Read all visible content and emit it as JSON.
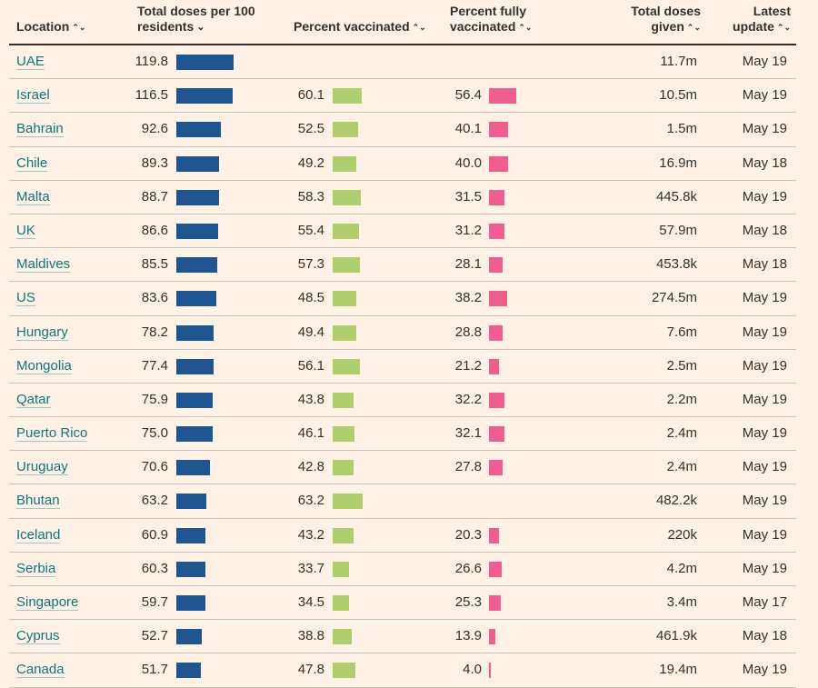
{
  "headers": {
    "location": "Location",
    "doses_line1": "Total doses per 100",
    "doses_line2": "residents",
    "pct_vacc": "Percent vaccinated",
    "pct_full_line1": "Percent fully",
    "pct_full_line2": "vaccinated",
    "given_line1": "Total doses",
    "given_line2": "given",
    "update_line1": "Latest",
    "update_line2": "update"
  },
  "icons": {
    "sort": "⌃⌄",
    "sort_active": "⌄"
  },
  "colors": {
    "doses_bar": "#1f5590",
    "vaccinated_bar": "#afcf6e",
    "fully_bar": "#ee5e8f",
    "link": "#0d7680",
    "background": "#fff1e5"
  },
  "rows": [
    {
      "location": "UAE",
      "doses": "119.8",
      "vaccinated": "",
      "fully": "",
      "given": "11.7m",
      "update": "May 19"
    },
    {
      "location": "Israel",
      "doses": "116.5",
      "vaccinated": "60.1",
      "fully": "56.4",
      "given": "10.5m",
      "update": "May 19"
    },
    {
      "location": "Bahrain",
      "doses": "92.6",
      "vaccinated": "52.5",
      "fully": "40.1",
      "given": "1.5m",
      "update": "May 19"
    },
    {
      "location": "Chile",
      "doses": "89.3",
      "vaccinated": "49.2",
      "fully": "40.0",
      "given": "16.9m",
      "update": "May 18"
    },
    {
      "location": "Malta",
      "doses": "88.7",
      "vaccinated": "58.3",
      "fully": "31.5",
      "given": "445.8k",
      "update": "May 19"
    },
    {
      "location": "UK",
      "doses": "86.6",
      "vaccinated": "55.4",
      "fully": "31.2",
      "given": "57.9m",
      "update": "May 18"
    },
    {
      "location": "Maldives",
      "doses": "85.5",
      "vaccinated": "57.3",
      "fully": "28.1",
      "given": "453.8k",
      "update": "May 18"
    },
    {
      "location": "US",
      "doses": "83.6",
      "vaccinated": "48.5",
      "fully": "38.2",
      "given": "274.5m",
      "update": "May 19"
    },
    {
      "location": "Hungary",
      "doses": "78.2",
      "vaccinated": "49.4",
      "fully": "28.8",
      "given": "7.6m",
      "update": "May 19"
    },
    {
      "location": "Mongolia",
      "doses": "77.4",
      "vaccinated": "56.1",
      "fully": "21.2",
      "given": "2.5m",
      "update": "May 19"
    },
    {
      "location": "Qatar",
      "doses": "75.9",
      "vaccinated": "43.8",
      "fully": "32.2",
      "given": "2.2m",
      "update": "May 19"
    },
    {
      "location": "Puerto Rico",
      "doses": "75.0",
      "vaccinated": "46.1",
      "fully": "32.1",
      "given": "2.4m",
      "update": "May 19"
    },
    {
      "location": "Uruguay",
      "doses": "70.6",
      "vaccinated": "42.8",
      "fully": "27.8",
      "given": "2.4m",
      "update": "May 19"
    },
    {
      "location": "Bhutan",
      "doses": "63.2",
      "vaccinated": "63.2",
      "fully": "",
      "given": "482.2k",
      "update": "May 19"
    },
    {
      "location": "Iceland",
      "doses": "60.9",
      "vaccinated": "43.2",
      "fully": "20.3",
      "given": "220k",
      "update": "May 19"
    },
    {
      "location": "Serbia",
      "doses": "60.3",
      "vaccinated": "33.7",
      "fully": "26.6",
      "given": "4.2m",
      "update": "May 19"
    },
    {
      "location": "Singapore",
      "doses": "59.7",
      "vaccinated": "34.5",
      "fully": "25.3",
      "given": "3.4m",
      "update": "May 17"
    },
    {
      "location": "Cyprus",
      "doses": "52.7",
      "vaccinated": "38.8",
      "fully": "13.9",
      "given": "461.9k",
      "update": "May 18"
    },
    {
      "location": "Canada",
      "doses": "51.7",
      "vaccinated": "47.8",
      "fully": "4.0",
      "given": "19.4m",
      "update": "May 19"
    }
  ]
}
